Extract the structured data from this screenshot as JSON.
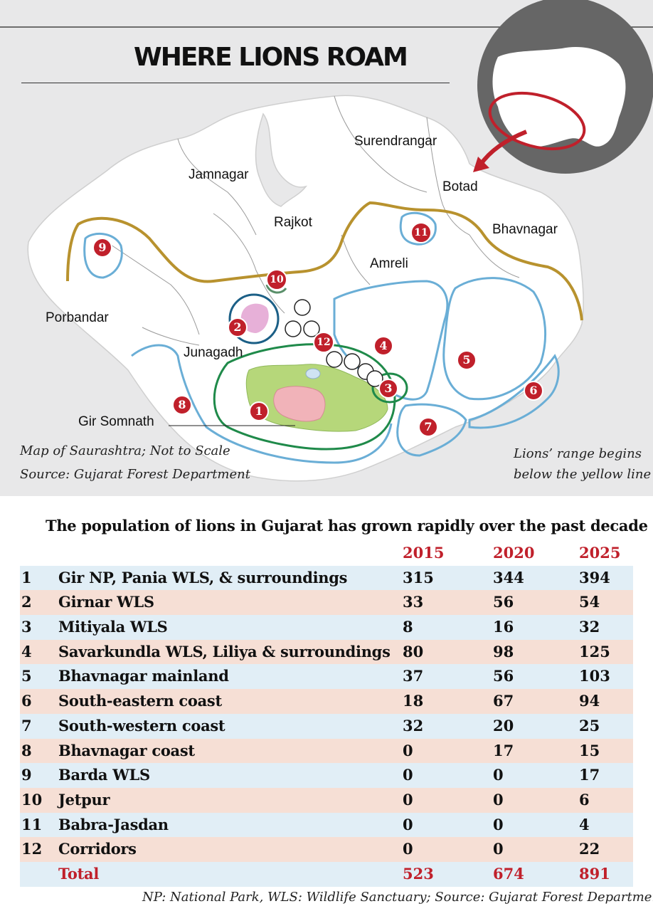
{
  "map": {
    "title": "WHERE LIONS ROAM",
    "districts": [
      "Surendrangar",
      "Jamnagar",
      "Botad",
      "Rajkot",
      "Bhavnagar",
      "Amreli",
      "Porbandar",
      "Junagadh",
      "Gir Somnath"
    ],
    "zones": [
      "1",
      "2",
      "3",
      "4",
      "5",
      "6",
      "7",
      "8",
      "9",
      "10",
      "11",
      "12"
    ],
    "note_line1": "Map of Saurashtra; Not to Scale",
    "note_line2": "Source: Gujarat Forest Department",
    "range_line1": "Lions’ range begins",
    "range_line2": "below the yellow line",
    "colors": {
      "panel": "#e8e8e9",
      "range_line": "#b8922e",
      "zone_outline": "#6aaed6",
      "gir_outline": "#1f8a4a",
      "gir_forest": "#b6d77a",
      "core": "#f1b3b9",
      "marker": "#c0202b",
      "inset_bg": "#666666"
    }
  },
  "table": {
    "title": "The population of lions in Gujarat has grown rapidly over the past decade",
    "years": [
      "2015",
      "2020",
      "2025"
    ],
    "rows": [
      {
        "num": "1",
        "name": "Gir NP, Pania WLS, & surroundings",
        "v2015": "315",
        "v2020": "344",
        "v2025": "394"
      },
      {
        "num": "2",
        "name": "Girnar WLS",
        "v2015": "33",
        "v2020": "56",
        "v2025": "54"
      },
      {
        "num": "3",
        "name": "Mitiyala WLS",
        "v2015": "8",
        "v2020": "16",
        "v2025": "32"
      },
      {
        "num": "4",
        "name": "Savarkundla WLS, Liliya & surroundings",
        "v2015": "80",
        "v2020": "98",
        "v2025": "125"
      },
      {
        "num": "5",
        "name": "Bhavnagar mainland",
        "v2015": "37",
        "v2020": "56",
        "v2025": "103"
      },
      {
        "num": "6",
        "name": "South-eastern coast",
        "v2015": "18",
        "v2020": "67",
        "v2025": "94"
      },
      {
        "num": "7",
        "name": "South-western coast",
        "v2015": "32",
        "v2020": "20",
        "v2025": "25"
      },
      {
        "num": "8",
        "name": "Bhavnagar coast",
        "v2015": "0",
        "v2020": "17",
        "v2025": "15"
      },
      {
        "num": "9",
        "name": "Barda WLS",
        "v2015": "0",
        "v2020": "0",
        "v2025": "17"
      },
      {
        "num": "10",
        "name": "Jetpur",
        "v2015": "0",
        "v2020": "0",
        "v2025": "6"
      },
      {
        "num": "11",
        "name": "Babra-Jasdan",
        "v2015": "0",
        "v2020": "0",
        "v2025": "4"
      },
      {
        "num": "12",
        "name": "Corridors",
        "v2015": "0",
        "v2020": "0",
        "v2025": "22"
      }
    ],
    "total": {
      "label": "Total",
      "v2015": "523",
      "v2020": "674",
      "v2025": "891"
    },
    "footnote": "NP: National Park, WLS: Wildlife Sanctuary;  Source: Gujarat Forest Department"
  }
}
